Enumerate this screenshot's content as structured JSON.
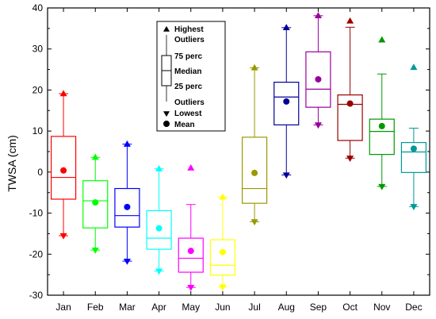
{
  "chart_data": {
    "type": "box",
    "ylabel": "TWSA (cm)",
    "xlabel": "",
    "ylim": [
      -30,
      40
    ],
    "yticks": [
      -30,
      -20,
      -10,
      0,
      10,
      20,
      30,
      40
    ],
    "categories": [
      "Jan",
      "Feb",
      "Mar",
      "Apr",
      "May",
      "Jun",
      "Jul",
      "Aug",
      "Sep",
      "Oct",
      "Nov",
      "Dec"
    ],
    "series": [
      {
        "category": "Jan",
        "color": "#ff0000",
        "whisker_low": -15.5,
        "q1": -6.6,
        "median": -1.3,
        "q3": 8.7,
        "whisker_high": 19.1,
        "mean": 0.4,
        "lowest": -15.5,
        "highest": 19.1
      },
      {
        "category": "Feb",
        "color": "#00ff00",
        "whisker_low": -19.0,
        "q1": -13.6,
        "median": -7.0,
        "q3": -2.1,
        "whisker_high": 3.6,
        "mean": -7.4,
        "lowest": -19.0,
        "highest": 3.6
      },
      {
        "category": "Mar",
        "color": "#0000ff",
        "whisker_low": -21.7,
        "q1": -13.4,
        "median": -10.6,
        "q3": -4.0,
        "whisker_high": 6.8,
        "mean": -8.5,
        "lowest": -21.7,
        "highest": 6.8
      },
      {
        "category": "Apr",
        "color": "#00ffff",
        "whisker_low": -24.1,
        "q1": -18.8,
        "median": -16.1,
        "q3": -9.4,
        "whisker_high": 0.8,
        "mean": -13.7,
        "lowest": -24.1,
        "highest": 0.8
      },
      {
        "category": "May",
        "color": "#ff00ff",
        "whisker_low": -28.1,
        "q1": -24.4,
        "median": -21.0,
        "q3": -16.1,
        "whisker_high": -7.9,
        "mean": -19.2,
        "lowest": -28.1,
        "highest": 1.0
      },
      {
        "category": "Jun",
        "color": "#ffff00",
        "whisker_low": -28.0,
        "q1": -25.1,
        "median": -22.7,
        "q3": -16.5,
        "whisker_high": -6.1,
        "mean": -19.5,
        "lowest": -28.0,
        "highest": -6.1
      },
      {
        "category": "Jul",
        "color": "#999900",
        "whisker_low": -12.1,
        "q1": -7.6,
        "median": -4.0,
        "q3": 8.5,
        "whisker_high": 25.4,
        "mean": -0.2,
        "lowest": -12.1,
        "highest": 25.4
      },
      {
        "category": "Aug",
        "color": "#000099",
        "whisker_low": -0.7,
        "q1": 11.5,
        "median": 18.3,
        "q3": 21.9,
        "whisker_high": 35.2,
        "mean": 17.2,
        "lowest": -0.7,
        "highest": 35.2
      },
      {
        "category": "Sep",
        "color": "#990099",
        "whisker_low": 11.5,
        "q1": 15.8,
        "median": 20.2,
        "q3": 29.3,
        "whisker_high": 38.1,
        "mean": 22.6,
        "lowest": 11.5,
        "highest": 38.1
      },
      {
        "category": "Oct",
        "color": "#990000",
        "whisker_low": 3.4,
        "q1": 7.7,
        "median": 16.5,
        "q3": 18.8,
        "whisker_high": 35.3,
        "mean": 16.7,
        "lowest": 3.4,
        "highest": 36.8
      },
      {
        "category": "Nov",
        "color": "#009900",
        "whisker_low": -3.5,
        "q1": 4.3,
        "median": 9.9,
        "q3": 12.9,
        "whisker_high": 23.9,
        "mean": 11.2,
        "lowest": -3.5,
        "highest": 32.2
      },
      {
        "category": "Dec",
        "color": "#009999",
        "whisker_low": -8.4,
        "q1": -0.1,
        "median": 4.9,
        "q3": 7.2,
        "whisker_high": 10.7,
        "mean": 5.7,
        "lowest": -8.4,
        "highest": 25.5
      }
    ],
    "legend": {
      "placement": "top-center",
      "items": [
        "Highest",
        "Outliers",
        "75 perc",
        "Median",
        "25 perc",
        "Outliers",
        "Lowest",
        "Mean"
      ]
    },
    "grid": false
  }
}
